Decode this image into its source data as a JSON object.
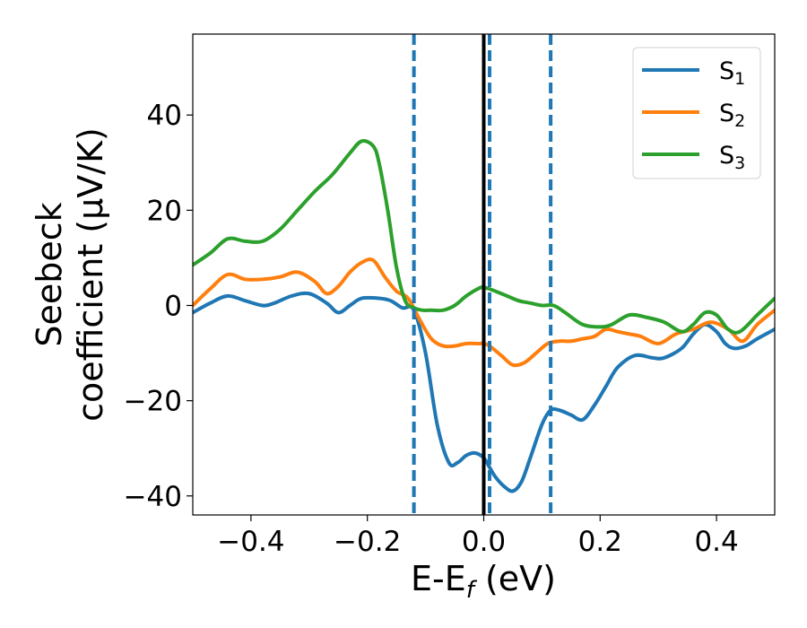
{
  "chart_data": {
    "type": "line",
    "xlabel": "E-E",
    "xlabel_sub": "f",
    "xlabel_unit": " (eV)",
    "ylabel_line1": "Seebeck",
    "ylabel_line2": "coefficient  (μV/K)",
    "xlim": [
      -0.5,
      0.5
    ],
    "ylim": [
      -44,
      57
    ],
    "xticks": [
      -0.4,
      -0.2,
      0.0,
      0.2,
      0.4
    ],
    "xtick_labels": [
      "−0.4",
      "−0.2",
      "0.0",
      "0.2",
      "0.4"
    ],
    "yticks": [
      -40,
      -20,
      0,
      20,
      40
    ],
    "ytick_labels": [
      "−40",
      "−20",
      "0",
      "20",
      "40"
    ],
    "legend_position": "top-right",
    "vlines_dashed": [
      -0.12,
      0.01,
      0.115
    ],
    "vline_solid": 0.0,
    "series": [
      {
        "name": "S",
        "sub": "1",
        "color": "#1f77b4",
        "x": [
          -0.5,
          -0.47,
          -0.44,
          -0.41,
          -0.38,
          -0.36,
          -0.33,
          -0.3,
          -0.27,
          -0.25,
          -0.23,
          -0.21,
          -0.18,
          -0.16,
          -0.14,
          -0.12,
          -0.1,
          -0.08,
          -0.06,
          -0.045,
          -0.03,
          -0.015,
          0.0,
          0.01,
          0.02,
          0.035,
          0.05,
          0.065,
          0.08,
          0.1,
          0.115,
          0.13,
          0.15,
          0.17,
          0.19,
          0.21,
          0.23,
          0.26,
          0.29,
          0.31,
          0.34,
          0.36,
          0.38,
          0.4,
          0.415,
          0.43,
          0.45,
          0.47,
          0.5
        ],
        "values": [
          -1.5,
          0.5,
          2.0,
          1.0,
          0,
          0.5,
          2.0,
          2.5,
          0.5,
          -1.5,
          0,
          1.5,
          1.5,
          1.0,
          -0.5,
          -1.0,
          -10,
          -25,
          -33,
          -33,
          -31.5,
          -31,
          -32,
          -34,
          -36,
          -38,
          -39,
          -37,
          -32,
          -25,
          -22,
          -22,
          -23,
          -24,
          -21,
          -17,
          -13,
          -10.5,
          -11,
          -11,
          -9,
          -6,
          -4,
          -5.5,
          -8,
          -9,
          -8.5,
          -7,
          -5
        ]
      },
      {
        "name": "S",
        "sub": "2",
        "color": "#ff7f0e",
        "x": [
          -0.5,
          -0.47,
          -0.44,
          -0.41,
          -0.38,
          -0.35,
          -0.32,
          -0.29,
          -0.27,
          -0.25,
          -0.23,
          -0.21,
          -0.19,
          -0.17,
          -0.15,
          -0.13,
          -0.11,
          -0.09,
          -0.07,
          -0.05,
          -0.03,
          -0.01,
          0.0,
          0.01,
          0.03,
          0.05,
          0.07,
          0.09,
          0.11,
          0.13,
          0.15,
          0.17,
          0.19,
          0.21,
          0.23,
          0.25,
          0.27,
          0.3,
          0.33,
          0.36,
          0.39,
          0.42,
          0.445,
          0.47,
          0.5
        ],
        "values": [
          0,
          3.5,
          6.5,
          5.5,
          5.5,
          6.0,
          7.0,
          5.0,
          2.5,
          4.0,
          7.0,
          9.0,
          9.5,
          6.0,
          3.0,
          1.5,
          -3.0,
          -7.0,
          -8.5,
          -8.5,
          -8.0,
          -8.0,
          -8.0,
          -8.5,
          -10.5,
          -12.5,
          -12.0,
          -10.0,
          -8.0,
          -7.5,
          -7.5,
          -7.0,
          -6.5,
          -5.0,
          -5.5,
          -6.0,
          -6.5,
          -8.0,
          -6.0,
          -5.0,
          -3.5,
          -5.0,
          -7.5,
          -4.0,
          -1.0
        ]
      },
      {
        "name": "S",
        "sub": "3",
        "color": "#2ca02c",
        "x": [
          -0.5,
          -0.47,
          -0.44,
          -0.41,
          -0.38,
          -0.35,
          -0.32,
          -0.29,
          -0.26,
          -0.23,
          -0.21,
          -0.19,
          -0.18,
          -0.165,
          -0.15,
          -0.135,
          -0.12,
          -0.105,
          -0.09,
          -0.07,
          -0.05,
          -0.03,
          -0.01,
          0.0,
          0.02,
          0.04,
          0.06,
          0.08,
          0.1,
          0.12,
          0.14,
          0.17,
          0.2,
          0.22,
          0.25,
          0.28,
          0.31,
          0.34,
          0.36,
          0.38,
          0.4,
          0.42,
          0.44,
          0.47,
          0.5
        ],
        "values": [
          8.5,
          11.0,
          14.0,
          13.5,
          13.5,
          16.0,
          20.0,
          24.0,
          27.5,
          32.0,
          34.5,
          33.5,
          30.0,
          20.0,
          8.0,
          1.0,
          -0.5,
          -1.0,
          -1.0,
          -1.0,
          0.0,
          2.0,
          3.5,
          3.8,
          3.0,
          2.0,
          1.0,
          0.5,
          0.0,
          0.0,
          -1.5,
          -4.0,
          -4.5,
          -4.0,
          -2.0,
          -2.5,
          -3.5,
          -5.5,
          -4.0,
          -1.5,
          -2.0,
          -5.0,
          -5.5,
          -2.0,
          1.5
        ]
      }
    ]
  }
}
